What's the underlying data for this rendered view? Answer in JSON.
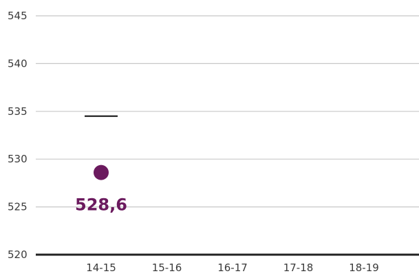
{
  "chart_data": {
    "type": "scatter",
    "categories": [
      "14-15",
      "15-16",
      "16-17",
      "17-18",
      "18-19"
    ],
    "yticks": [
      "545",
      "540",
      "535",
      "530",
      "525",
      "520"
    ],
    "ylim": [
      520,
      545
    ],
    "grid": true,
    "series": [
      {
        "values": [
          528.6,
          null,
          null,
          null,
          null
        ],
        "labels": [
          "528,6",
          "",
          "",
          "",
          ""
        ],
        "color": "#6b1a5e"
      }
    ],
    "reference_lines": [
      {
        "category": "14-15",
        "value": 534.5,
        "color": "#222222"
      }
    ],
    "title": "",
    "xlabel": "",
    "ylabel": ""
  }
}
